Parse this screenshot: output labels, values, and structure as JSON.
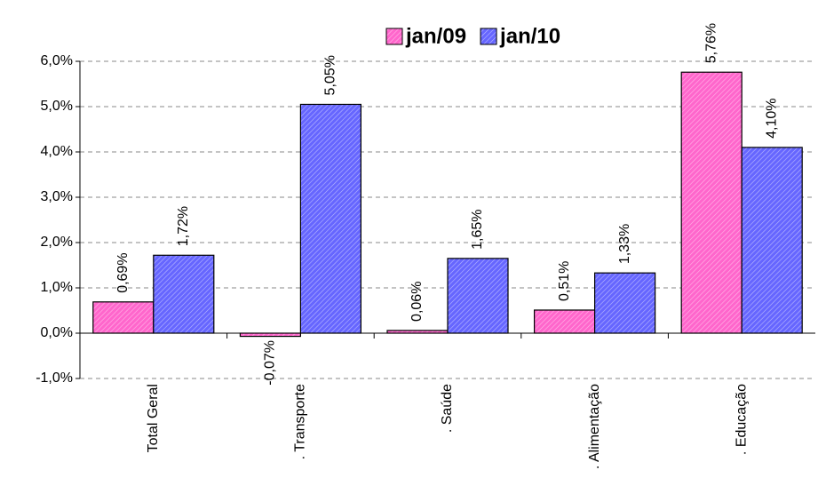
{
  "chart_data": {
    "type": "bar",
    "categories": [
      "Total Geral",
      ". Transporte",
      ". Saúde",
      ". Alimentação",
      ". Educação"
    ],
    "series": [
      {
        "name": "jan/09",
        "color": "#ff66cc",
        "values": [
          0.69,
          -0.07,
          0.06,
          0.51,
          5.76
        ],
        "value_labels": [
          "0,69%",
          "-0,07%",
          "0,06%",
          "0,51%",
          "5,76%"
        ]
      },
      {
        "name": "jan/10",
        "color": "#6666ff",
        "values": [
          1.72,
          5.05,
          1.65,
          1.33,
          4.1
        ],
        "value_labels": [
          "1,72%",
          "5,05%",
          "1,65%",
          "1,33%",
          "4,10%"
        ]
      }
    ],
    "ylim": [
      -1,
      6
    ],
    "yticks": [
      {
        "value": -1,
        "label": "-1,0%"
      },
      {
        "value": 0,
        "label": "0,0%"
      },
      {
        "value": 1,
        "label": "1,0%"
      },
      {
        "value": 2,
        "label": "2,0%"
      },
      {
        "value": 3,
        "label": "3,0%"
      },
      {
        "value": 4,
        "label": "4,0%"
      },
      {
        "value": 5,
        "label": "5,0%"
      },
      {
        "value": 6,
        "label": "6,0%"
      }
    ],
    "grid": true
  }
}
